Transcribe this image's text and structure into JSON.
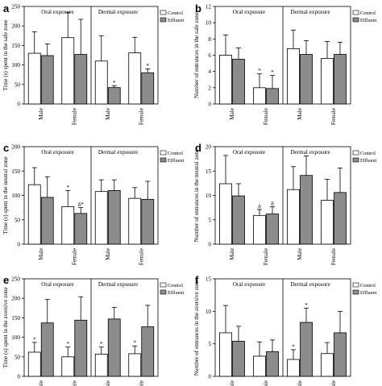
{
  "colors": {
    "control": "#ffffff",
    "effluent": "#8c8c8c",
    "axis": "#000000"
  },
  "chart_data": [
    {
      "id": "a",
      "type": "bar",
      "letter": "a",
      "ylabel": "Time (s) spent in the safe zone",
      "ylim": [
        0,
        250
      ],
      "ticks": [
        0,
        50,
        100,
        150,
        200,
        250
      ],
      "groups": [
        "Oral exposure",
        "Dermal exposure"
      ],
      "categories": [
        "Male",
        "Female",
        "Male",
        "Female"
      ],
      "legend": [
        "Control",
        "Effluent"
      ],
      "legend_position": "top-right",
      "series": [
        {
          "name": "Control",
          "values": [
            130,
            170,
            110,
            131
          ],
          "errors": [
            55,
            65,
            65,
            40
          ],
          "marks": [
            "",
            "",
            "",
            ""
          ]
        },
        {
          "name": "Effluent",
          "values": [
            124,
            127,
            42,
            80
          ],
          "errors": [
            30,
            90,
            5,
            10
          ],
          "marks": [
            "",
            "",
            "*",
            "*"
          ]
        }
      ]
    },
    {
      "id": "b",
      "type": "bar",
      "letter": "b",
      "ylabel": "Number of entrances in the safe zone",
      "ylim": [
        0,
        12
      ],
      "ticks": [
        0,
        2,
        4,
        6,
        8,
        10,
        12
      ],
      "groups": [
        "Oral exposure",
        "Dermal exposure"
      ],
      "categories": [
        "Male",
        "Female",
        "Male",
        "Female"
      ],
      "legend": [
        "Control",
        "Effluent"
      ],
      "legend_position": "top-right",
      "series": [
        {
          "name": "Control",
          "values": [
            6.0,
            2.0,
            6.8,
            5.6
          ],
          "errors": [
            2.5,
            1.7,
            2.3,
            2.1
          ],
          "marks": [
            "",
            "*",
            "",
            ""
          ]
        },
        {
          "name": "Effluent",
          "values": [
            5.5,
            1.9,
            6.1,
            6.1
          ],
          "errors": [
            1.4,
            1.6,
            1.7,
            1.5
          ],
          "marks": [
            "",
            "*",
            "",
            ""
          ]
        }
      ]
    },
    {
      "id": "c",
      "type": "bar",
      "letter": "c",
      "ylabel": "Time (s) spent in the neutral zone",
      "ylim": [
        0,
        200
      ],
      "ticks": [
        0,
        50,
        100,
        150,
        200
      ],
      "groups": [
        "Oral exposure",
        "Dermal exposure"
      ],
      "categories": [
        "Male",
        "Female",
        "Male",
        "Female"
      ],
      "legend": [
        "Control",
        "Effluent"
      ],
      "legend_position": "top-right",
      "series": [
        {
          "name": "Control",
          "values": [
            122,
            77,
            108,
            94
          ],
          "errors": [
            35,
            33,
            24,
            22
          ],
          "marks": [
            "",
            "*",
            "",
            ""
          ]
        },
        {
          "name": "Effluent",
          "values": [
            96,
            63,
            110,
            92
          ],
          "errors": [
            42,
            12,
            22,
            37
          ],
          "marks": [
            "",
            "δ*",
            "",
            ""
          ]
        }
      ]
    },
    {
      "id": "d",
      "type": "bar",
      "letter": "d",
      "ylabel": "Number of entrances in the neutral zone",
      "ylim": [
        0,
        20
      ],
      "ticks": [
        0,
        5,
        10,
        15,
        20
      ],
      "groups": [
        "Oral exposure",
        "Dermal exposure"
      ],
      "categories": [
        "Male",
        "Female",
        "Male",
        "Female"
      ],
      "legend": [
        "Control",
        "Effluent"
      ],
      "legend_position": "top-right",
      "series": [
        {
          "name": "Control",
          "values": [
            12.4,
            5.9,
            11.2,
            9.0
          ],
          "errors": [
            5.8,
            1.2,
            4.7,
            4.3
          ],
          "marks": [
            "",
            "δ",
            "",
            ""
          ]
        },
        {
          "name": "Effluent",
          "values": [
            9.9,
            6.2,
            14.1,
            10.6
          ],
          "errors": [
            2.5,
            1.5,
            4.0,
            5.0
          ],
          "marks": [
            "",
            "δ",
            "",
            ""
          ]
        }
      ]
    },
    {
      "id": "e",
      "type": "bar",
      "letter": "e",
      "ylabel": "Time (s) spent in the aversive zone",
      "ylim": [
        0,
        250
      ],
      "ticks": [
        0,
        50,
        100,
        150,
        200,
        250
      ],
      "groups": [
        "Oral exposure",
        "Dermal exposure"
      ],
      "categories": [
        "Male",
        "Female",
        "Male",
        "Female"
      ],
      "legend": [
        "Control",
        "Effluent"
      ],
      "legend_position": "top-right",
      "series": [
        {
          "name": "Control",
          "values": [
            62,
            50,
            57,
            58
          ],
          "errors": [
            25,
            25,
            18,
            20
          ],
          "marks": [
            "*",
            "*",
            "*",
            "*"
          ]
        },
        {
          "name": "Effluent",
          "values": [
            137,
            144,
            147,
            127
          ],
          "errors": [
            60,
            60,
            30,
            55
          ],
          "marks": [
            "",
            "",
            "",
            ""
          ]
        }
      ]
    },
    {
      "id": "f",
      "type": "bar",
      "letter": "f",
      "ylabel": "Number of entrances in the aversive zone",
      "ylim": [
        0,
        15
      ],
      "ticks": [
        0,
        5,
        10,
        15
      ],
      "groups": [
        "Oral exposure",
        "Dermal exposure"
      ],
      "categories": [
        "Male",
        "Female",
        "Male",
        "Female"
      ],
      "legend": [
        "Control",
        "Effluent"
      ],
      "legend_position": "top-right",
      "series": [
        {
          "name": "Control",
          "values": [
            6.7,
            3.1,
            2.6,
            3.5
          ],
          "errors": [
            4.2,
            2.2,
            1.5,
            1.7
          ],
          "marks": [
            "",
            "",
            "*",
            ""
          ]
        },
        {
          "name": "Effluent",
          "values": [
            5.4,
            3.8,
            8.3,
            6.7
          ],
          "errors": [
            2.3,
            1.8,
            2.2,
            3.3
          ],
          "marks": [
            "",
            "",
            "*",
            ""
          ]
        }
      ]
    }
  ]
}
